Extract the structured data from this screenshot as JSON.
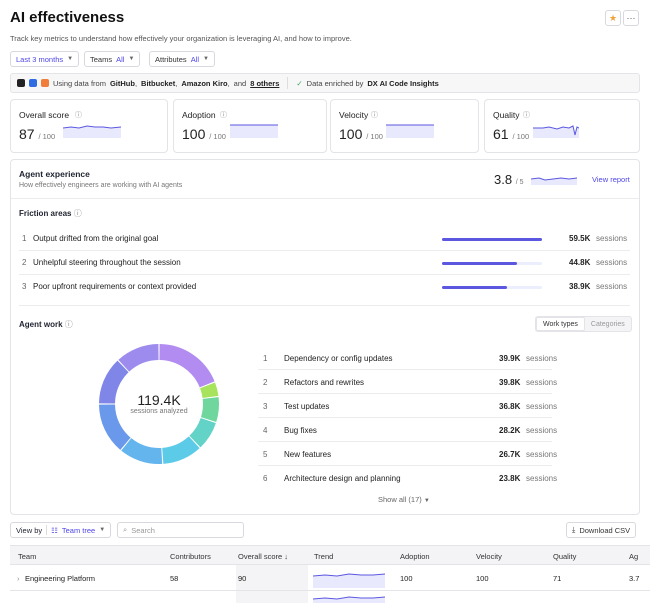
{
  "header": {
    "title": "AI effectiveness",
    "subtitle": "Track key metrics to understand how effectively your organization is leveraging AI, and how to improve.",
    "star_icon": "star-icon",
    "more_icon": "more-icon",
    "more_glyph": "···"
  },
  "filters": {
    "date": "Last 3 months",
    "teams_label": "Teams",
    "teams_value": "All",
    "attrs_label": "Attributes",
    "attrs_value": "All"
  },
  "sources": {
    "prefix": "Using data from",
    "s1": "GitHub",
    "s2": "Bitbucket",
    "s3": "Amazon Kiro",
    "and": "and",
    "others": "8 others",
    "enriched_prefix": "Data enriched by",
    "enriched_by": "DX AI Code Insights",
    "sep": ","
  },
  "metrics": [
    {
      "label": "Overall score",
      "value": "87",
      "max": "/ 100"
    },
    {
      "label": "Adoption",
      "value": "100",
      "max": "/ 100"
    },
    {
      "label": "Velocity",
      "value": "100",
      "max": "/ 100"
    },
    {
      "label": "Quality",
      "value": "61",
      "max": "/ 100"
    }
  ],
  "agent_experience": {
    "title": "Agent experience",
    "subtitle": "How effectively engineers are working with AI agents",
    "score": "3.8",
    "max": "/ 5",
    "link": "View report"
  },
  "friction": {
    "title": "Friction areas",
    "rows": [
      {
        "n": "1",
        "text": "Output drifted from the original goal",
        "value": "59.5K",
        "unit": "sessions",
        "fill": 1.0
      },
      {
        "n": "2",
        "text": "Unhelpful steering throughout the session",
        "value": "44.8K",
        "unit": "sessions",
        "fill": 0.75
      },
      {
        "n": "3",
        "text": "Poor upfront requirements or context provided",
        "value": "38.9K",
        "unit": "sessions",
        "fill": 0.65
      }
    ]
  },
  "agent_work": {
    "title": "Agent work",
    "tabs": [
      "Work types",
      "Categories"
    ],
    "total": "119.4K",
    "total_label": "sessions analyzed",
    "show_all": "Show all (17)",
    "rows": [
      {
        "n": "1",
        "text": "Dependency or config updates",
        "value": "39.9K",
        "unit": "sessions"
      },
      {
        "n": "2",
        "text": "Refactors and rewrites",
        "value": "39.8K",
        "unit": "sessions"
      },
      {
        "n": "3",
        "text": "Test updates",
        "value": "36.8K",
        "unit": "sessions"
      },
      {
        "n": "4",
        "text": "Bug fixes",
        "value": "28.2K",
        "unit": "sessions"
      },
      {
        "n": "5",
        "text": "New features",
        "value": "26.7K",
        "unit": "sessions"
      },
      {
        "n": "6",
        "text": "Architecture design and planning",
        "value": "23.8K",
        "unit": "sessions"
      }
    ]
  },
  "donut_colors": [
    "#b28cf0",
    "#a7e35c",
    "#6fd69d",
    "#63d2c7",
    "#5ccbe8",
    "#64b4ee",
    "#6a98ea",
    "#7f86e8",
    "#9d8cee"
  ],
  "table_controls": {
    "view_by": "View by",
    "view_value": "Team tree",
    "search_placeholder": "Search",
    "download": "Download CSV"
  },
  "table": {
    "headers": [
      "Team",
      "Contributors",
      "Overall score",
      "Trend",
      "Adoption",
      "Velocity",
      "Quality",
      "Ag"
    ],
    "rows": [
      {
        "team": "Engineering Platform",
        "contributors": "58",
        "score": "90",
        "adoption": "100",
        "velocity": "100",
        "quality": "71",
        "ag": "3.7"
      }
    ]
  }
}
